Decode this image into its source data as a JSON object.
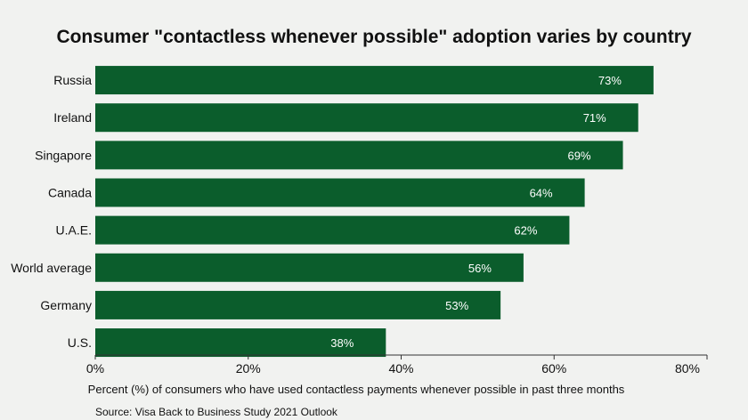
{
  "chart_data": {
    "type": "bar",
    "orientation": "horizontal",
    "title": "Consumer \"contactless whenever possible\" adoption varies by country",
    "categories": [
      "Russia",
      "Ireland",
      "Singapore",
      "Canada",
      "U.A.E.",
      "World average",
      "Germany",
      "U.S."
    ],
    "values": [
      73,
      71,
      69,
      64,
      62,
      56,
      53,
      38
    ],
    "value_labels": [
      "73%",
      "71%",
      "69%",
      "64%",
      "62%",
      "56%",
      "53%",
      "38%"
    ],
    "xlim": [
      0,
      80
    ],
    "x_ticks": [
      0,
      20,
      40,
      60,
      80
    ],
    "x_tick_labels": [
      "0%",
      "20%",
      "40%",
      "60%",
      "80%"
    ],
    "xlabel": "Percent (%) of consumers who have used contactless payments whenever possible in past three months",
    "ylabel": "",
    "bar_color": "#0b5d2c",
    "grid": false
  },
  "source": "Source: Visa Back to Business Study 2021 Outlook"
}
